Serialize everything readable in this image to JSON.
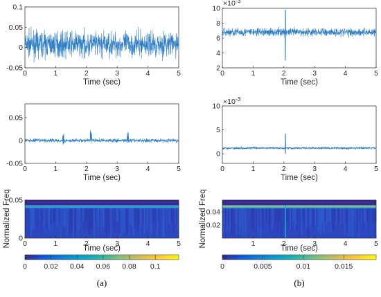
{
  "colors": {
    "signal": "#2e7ec4",
    "axis": "#262626",
    "caption": "#000000"
  },
  "captions": [
    "(a)",
    "(b)"
  ],
  "chart_data": [
    {
      "id": "a1",
      "type": "line",
      "xlabel": "Time (sec)",
      "ylabel": "",
      "xlim": [
        0,
        5
      ],
      "ylim": [
        -0.05,
        0.1
      ],
      "xticks": [
        "0",
        "1",
        "2",
        "3",
        "4",
        "5"
      ],
      "yticks": [
        "-0.05",
        "0",
        "0.05",
        "0.1"
      ],
      "yticks_values": [
        -0.05,
        0,
        0.05,
        0.1
      ],
      "series": [
        {
          "signal": "noise",
          "baseline": 0.008,
          "amplitude": 0.03,
          "range": [
            -0.05,
            0.07
          ]
        }
      ]
    },
    {
      "id": "b1",
      "type": "line",
      "xlabel": "Time (sec)",
      "ylabel": "",
      "exponent": "×10",
      "exponent_power": "-3",
      "xlim": [
        0,
        5
      ],
      "ylim": [
        2,
        10
      ],
      "xticks": [
        "0",
        "1",
        "2",
        "3",
        "4",
        "5"
      ],
      "yticks": [
        "2",
        "4",
        "6",
        "8",
        "10"
      ],
      "yticks_values": [
        2,
        4,
        6,
        8,
        10
      ],
      "series": [
        {
          "signal": "noise",
          "baseline": 6.8,
          "amplitude": 0.55,
          "spike_at": 2.05,
          "spike_range": [
            3.0,
            9.8
          ]
        }
      ]
    },
    {
      "id": "a2",
      "type": "line",
      "xlabel": "Time (sec)",
      "ylabel": "",
      "xlim": [
        0,
        5
      ],
      "ylim": [
        -0.05,
        0.08
      ],
      "xticks": [
        "0",
        "1",
        "2",
        "3",
        "4",
        "5"
      ],
      "yticks": [
        "-0.05",
        "0",
        "0.05"
      ],
      "yticks_values": [
        -0.05,
        0,
        0.05
      ],
      "series": [
        {
          "signal": "noise",
          "baseline": 0.0,
          "amplitude": 0.004,
          "peaks_at": [
            1.25,
            2.15,
            3.35
          ]
        }
      ]
    },
    {
      "id": "b2",
      "type": "line",
      "xlabel": "Time (sec)",
      "ylabel": "",
      "exponent": "×10",
      "exponent_power": "-3",
      "xlim": [
        0,
        5
      ],
      "ylim": [
        -2,
        10
      ],
      "xticks": [
        "0",
        "1",
        "2",
        "3",
        "4",
        "5"
      ],
      "yticks": [
        "0",
        "5",
        "10"
      ],
      "yticks_values": [
        0,
        5,
        10
      ],
      "series": [
        {
          "signal": "noise",
          "baseline": 1.2,
          "amplitude": 0.25,
          "spike_at": 2.05,
          "spike_range": [
            0.0,
            4.2
          ]
        }
      ]
    },
    {
      "id": "a3",
      "type": "heatmap",
      "xlabel": "Time (sec)",
      "ylabel": "Normalized Freq",
      "xlim": [
        0,
        5
      ],
      "ylim": [
        0,
        0.05
      ],
      "xticks": [
        "0",
        "1",
        "2",
        "3",
        "4",
        "5"
      ],
      "yticks": [
        "0",
        "0.05"
      ],
      "yticks_values": [
        0,
        0.05
      ],
      "band_top_fraction": 0.14,
      "colorbar": {
        "ticks": [
          "0",
          "0.02",
          "0.04",
          "0.06",
          "0.08",
          "0.1"
        ],
        "values": [
          0,
          0.02,
          0.04,
          0.06,
          0.08,
          0.1
        ],
        "max": 0.118
      }
    },
    {
      "id": "b3",
      "type": "heatmap",
      "xlabel": "Time (sec)",
      "ylabel": "Normalized Freq",
      "xlim": [
        0,
        5
      ],
      "ylim": [
        0,
        0.058
      ],
      "xticks": [
        "1",
        "2",
        "3",
        "4",
        "5"
      ],
      "xticks_values": [
        1,
        2,
        3,
        4,
        5
      ],
      "yticks": [
        "0.02",
        "0.04"
      ],
      "yticks_values": [
        0.02,
        0.04
      ],
      "band_top_fraction": 0.14,
      "spike_at": 2.05,
      "colorbar": {
        "ticks": [
          "0",
          "0.005",
          "0.01",
          "0.015"
        ],
        "values": [
          0,
          0.005,
          0.01,
          0.015
        ],
        "max": 0.019
      }
    }
  ]
}
